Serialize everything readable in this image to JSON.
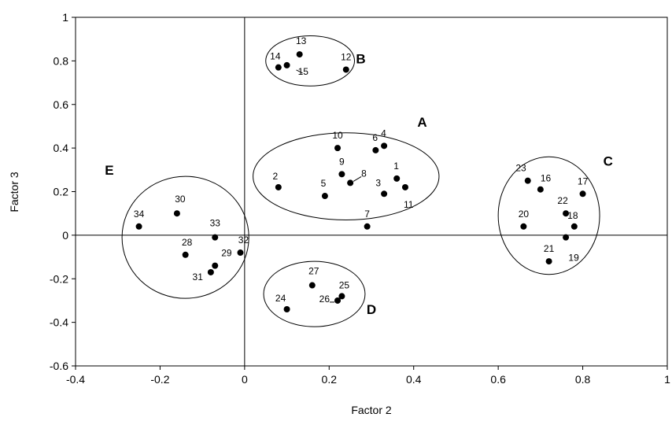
{
  "chart_data": {
    "type": "scatter",
    "xlabel": "Factor 2",
    "ylabel": "Factor 3",
    "xlim": [
      -0.4,
      1
    ],
    "ylim": [
      -0.6,
      1
    ],
    "xticks": [
      -0.4,
      -0.2,
      0,
      0.2,
      0.4,
      0.6,
      0.8,
      1
    ],
    "yticks": [
      -0.6,
      -0.4,
      -0.2,
      0,
      0.2,
      0.4,
      0.6,
      0.8,
      1
    ],
    "x_tick_labels": [
      "-0.4",
      "-0.2",
      "0",
      "0.2",
      "0.4",
      "0.6",
      "0.8",
      "1"
    ],
    "y_tick_labels": [
      "-0.6",
      "-0.4",
      "-0.2",
      "0",
      "0.2",
      "0.4",
      "0.6",
      "0.8",
      "1"
    ],
    "grid": false,
    "zero_lines": true,
    "points": [
      {
        "label": "1",
        "x": 0.36,
        "y": 0.26
      },
      {
        "label": "2",
        "x": 0.08,
        "y": 0.22
      },
      {
        "label": "3",
        "x": 0.33,
        "y": 0.19
      },
      {
        "label": "4",
        "x": 0.33,
        "y": 0.41
      },
      {
        "label": "5",
        "x": 0.19,
        "y": 0.18
      },
      {
        "label": "6",
        "x": 0.31,
        "y": 0.39
      },
      {
        "label": "7",
        "x": 0.29,
        "y": 0.04
      },
      {
        "label": "8",
        "x": 0.25,
        "y": 0.24
      },
      {
        "label": "9",
        "x": 0.23,
        "y": 0.28
      },
      {
        "label": "10",
        "x": 0.22,
        "y": 0.4
      },
      {
        "label": "11",
        "x": 0.38,
        "y": 0.22
      },
      {
        "label": "12",
        "x": 0.24,
        "y": 0.76
      },
      {
        "label": "13",
        "x": 0.13,
        "y": 0.83
      },
      {
        "label": "14",
        "x": 0.08,
        "y": 0.77
      },
      {
        "label": "15",
        "x": 0.1,
        "y": 0.78
      },
      {
        "label": "16",
        "x": 0.7,
        "y": 0.21
      },
      {
        "label": "17",
        "x": 0.8,
        "y": 0.19
      },
      {
        "label": "18",
        "x": 0.78,
        "y": 0.04
      },
      {
        "label": "19",
        "x": 0.76,
        "y": -0.01
      },
      {
        "label": "20",
        "x": 0.66,
        "y": 0.04
      },
      {
        "label": "21",
        "x": 0.72,
        "y": -0.12
      },
      {
        "label": "22",
        "x": 0.76,
        "y": 0.1
      },
      {
        "label": "23",
        "x": 0.67,
        "y": 0.25
      },
      {
        "label": "24",
        "x": 0.1,
        "y": -0.34
      },
      {
        "label": "25",
        "x": 0.23,
        "y": -0.28
      },
      {
        "label": "26",
        "x": 0.22,
        "y": -0.3
      },
      {
        "label": "27",
        "x": 0.16,
        "y": -0.23
      },
      {
        "label": "28",
        "x": -0.14,
        "y": -0.09
      },
      {
        "label": "29",
        "x": -0.07,
        "y": -0.14
      },
      {
        "label": "30",
        "x": -0.16,
        "y": 0.1
      },
      {
        "label": "31",
        "x": -0.08,
        "y": -0.17
      },
      {
        "label": "32",
        "x": -0.01,
        "y": -0.08
      },
      {
        "label": "33",
        "x": -0.07,
        "y": -0.01
      },
      {
        "label": "34",
        "x": -0.25,
        "y": 0.04
      }
    ],
    "groups": [
      {
        "label": "A",
        "cx": 0.24,
        "cy": 0.27,
        "rx": 0.22,
        "ry": 0.2
      },
      {
        "label": "B",
        "cx": 0.155,
        "cy": 0.8,
        "rx": 0.105,
        "ry": 0.115
      },
      {
        "label": "C",
        "cx": 0.72,
        "cy": 0.09,
        "rx": 0.12,
        "ry": 0.27
      },
      {
        "label": "D",
        "cx": 0.165,
        "cy": -0.27,
        "rx": 0.12,
        "ry": 0.15
      },
      {
        "label": "E",
        "cx": -0.14,
        "cy": -0.01,
        "rx": 0.15,
        "ry": 0.28
      }
    ]
  }
}
